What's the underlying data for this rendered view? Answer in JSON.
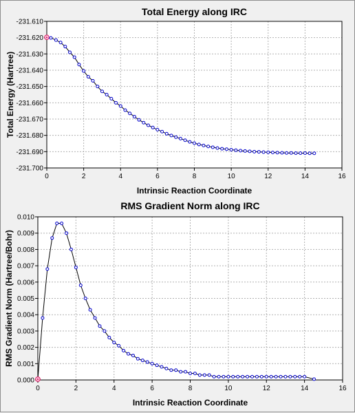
{
  "chart_data": [
    {
      "type": "line",
      "title": "Total Energy along IRC",
      "xlabel": "Intrinsic Reaction Coordinate",
      "ylabel": "Total Energy (Hartree)",
      "xlim": [
        0,
        16
      ],
      "ylim": [
        -231.7,
        -231.61
      ],
      "xticks": [
        0,
        2,
        4,
        6,
        8,
        10,
        12,
        14,
        16
      ],
      "xtick_labels": [
        "0",
        "2",
        "4",
        "6",
        "8",
        "10",
        "12",
        "14",
        "16"
      ],
      "yticks": [
        -231.61,
        -231.62,
        -231.63,
        -231.64,
        -231.65,
        -231.66,
        -231.67,
        -231.68,
        -231.69,
        -231.7
      ],
      "ytick_labels": [
        "-231.610",
        "-231.620",
        "-231.630",
        "-231.640",
        "-231.650",
        "-231.660",
        "-231.670",
        "-231.680",
        "-231.690",
        "-231.700"
      ],
      "grid": true,
      "line_color": "#000000",
      "marker_color": "#0000cc",
      "highlight_color": "#e0206a",
      "highlight_index": 0,
      "series": [
        {
          "x": [
            0,
            0.22,
            0.5,
            0.75,
            1.0,
            1.25,
            1.5,
            1.75,
            2.0,
            2.25,
            2.5,
            2.75,
            3.0,
            3.25,
            3.5,
            3.75,
            4.0,
            4.25,
            4.5,
            4.75,
            5.0,
            5.25,
            5.5,
            5.75,
            6.0,
            6.25,
            6.5,
            6.75,
            7.0,
            7.25,
            7.5,
            7.75,
            8.0,
            8.25,
            8.5,
            8.75,
            9.0,
            9.25,
            9.5,
            9.75,
            10.0,
            10.25,
            10.5,
            10.75,
            11.0,
            11.25,
            11.5,
            11.75,
            12.0,
            12.25,
            12.5,
            12.75,
            13.0,
            13.25,
            13.5,
            13.75,
            14.0,
            14.25,
            14.5
          ],
          "values": [
            -231.6198,
            -231.6202,
            -231.6215,
            -231.623,
            -231.6255,
            -231.629,
            -231.632,
            -231.6365,
            -231.6405,
            -231.644,
            -231.6465,
            -231.65,
            -231.653,
            -231.655,
            -231.6575,
            -231.66,
            -231.662,
            -231.6645,
            -231.6665,
            -231.6685,
            -231.6705,
            -231.6722,
            -231.6738,
            -231.6752,
            -231.6765,
            -231.6777,
            -231.679,
            -231.6801,
            -231.6811,
            -231.682,
            -231.683,
            -231.684,
            -231.6848,
            -231.6856,
            -231.6862,
            -231.6868,
            -231.6873,
            -231.6878,
            -231.6882,
            -231.6885,
            -231.6888,
            -231.6891,
            -231.6894,
            -231.6896,
            -231.6898,
            -231.69,
            -231.6901,
            -231.6903,
            -231.6904,
            -231.6905,
            -231.6906,
            -231.6907,
            -231.6908,
            -231.6908,
            -231.6909,
            -231.6909,
            -231.6909,
            -231.691,
            -231.691
          ]
        }
      ]
    },
    {
      "type": "line",
      "title": "RMS Gradient Norm along IRC",
      "xlabel": "Intrinsic Reaction Coordinate",
      "ylabel": "RMS Gradient Norm (Hartree/Bohr)",
      "xlim": [
        0,
        16
      ],
      "ylim": [
        0,
        0.01
      ],
      "xticks": [
        0,
        2,
        4,
        6,
        8,
        10,
        12,
        14,
        16
      ],
      "xtick_labels": [
        "0",
        "2",
        "4",
        "6",
        "8",
        "10",
        "12",
        "14",
        "16"
      ],
      "yticks": [
        0,
        0.001,
        0.002,
        0.003,
        0.004,
        0.005,
        0.006,
        0.007,
        0.008,
        0.009,
        0.01
      ],
      "ytick_labels": [
        "0.000",
        "0.001",
        "0.002",
        "0.003",
        "0.004",
        "0.005",
        "0.006",
        "0.007",
        "0.008",
        "0.009",
        "0.010"
      ],
      "grid": true,
      "line_color": "#000000",
      "marker_color": "#0000cc",
      "highlight_color": "#e0206a",
      "highlight_index": 0,
      "series": [
        {
          "x": [
            0,
            0.25,
            0.5,
            0.75,
            1.0,
            1.25,
            1.5,
            1.75,
            2.0,
            2.25,
            2.5,
            2.75,
            3.0,
            3.25,
            3.5,
            3.75,
            4.0,
            4.25,
            4.5,
            4.75,
            5.0,
            5.25,
            5.5,
            5.75,
            6.0,
            6.25,
            6.5,
            6.75,
            7.0,
            7.25,
            7.5,
            7.75,
            8.0,
            8.25,
            8.5,
            8.75,
            9.0,
            9.25,
            9.5,
            9.75,
            10.0,
            10.25,
            10.5,
            10.75,
            11.0,
            11.25,
            11.5,
            11.75,
            12.0,
            12.25,
            12.5,
            12.75,
            13.0,
            13.25,
            13.5,
            13.75,
            14.0,
            14.5
          ],
          "values": [
            5e-05,
            0.0038,
            0.0068,
            0.0087,
            0.0096,
            0.0096,
            0.009,
            0.008,
            0.0069,
            0.0058,
            0.005,
            0.0043,
            0.0038,
            0.0033,
            0.003,
            0.0026,
            0.0023,
            0.0021,
            0.0018,
            0.0016,
            0.0015,
            0.0013,
            0.0012,
            0.0011,
            0.001,
            0.0009,
            0.0008,
            0.0007,
            0.0006,
            0.0006,
            0.0005,
            0.0005,
            0.0004,
            0.0004,
            0.0003,
            0.0003,
            0.0003,
            0.0002,
            0.0002,
            0.0002,
            0.0002,
            0.0002,
            0.0002,
            0.0002,
            0.0002,
            0.0002,
            0.0002,
            0.0002,
            0.0002,
            0.0002,
            0.0002,
            0.0002,
            0.0002,
            0.0002,
            0.0002,
            0.0002,
            0.0002,
            5e-05
          ]
        }
      ]
    }
  ]
}
